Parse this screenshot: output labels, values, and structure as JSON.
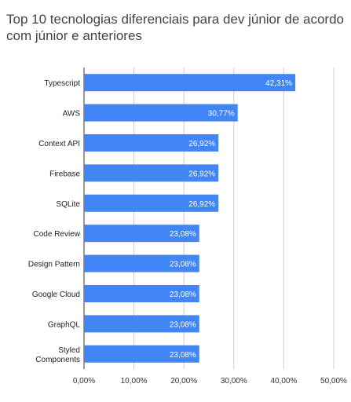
{
  "chart_data": {
    "type": "bar",
    "orientation": "horizontal",
    "title": "Top 10 tecnologias diferenciais para dev júnior de acordo com júnior e anteriores",
    "categories": [
      "Typescript",
      "AWS",
      "Context API",
      "Firebase",
      "SQLite",
      "Code Review",
      "Design Pattern",
      "Google Cloud",
      "GraphQL",
      "Styled Components"
    ],
    "category_lines": [
      [
        "Typescript"
      ],
      [
        "AWS"
      ],
      [
        "Context API"
      ],
      [
        "Firebase"
      ],
      [
        "SQLite"
      ],
      [
        "Code Review"
      ],
      [
        "Design Pattern"
      ],
      [
        "Google Cloud"
      ],
      [
        "GraphQL"
      ],
      [
        "Styled",
        "Components"
      ]
    ],
    "values": [
      42.31,
      30.77,
      26.92,
      26.92,
      26.92,
      23.08,
      23.08,
      23.08,
      23.08,
      23.08
    ],
    "data_labels": [
      "42,31%",
      "30,77%",
      "26,92%",
      "26,92%",
      "26,92%",
      "23,08%",
      "23,08%",
      "23,08%",
      "23,08%",
      "23,08%"
    ],
    "xticks": [
      0,
      10,
      20,
      30,
      40,
      50
    ],
    "xtick_labels": [
      "0,00%",
      "10,00%",
      "20,00%",
      "30,00%",
      "40,00%",
      "50,00%"
    ],
    "xlim": [
      0,
      50
    ],
    "xlabel": "",
    "ylabel": "",
    "grid": true,
    "legend": "none",
    "bar_color": "#4285f4",
    "grid_color": "#cccccc"
  }
}
